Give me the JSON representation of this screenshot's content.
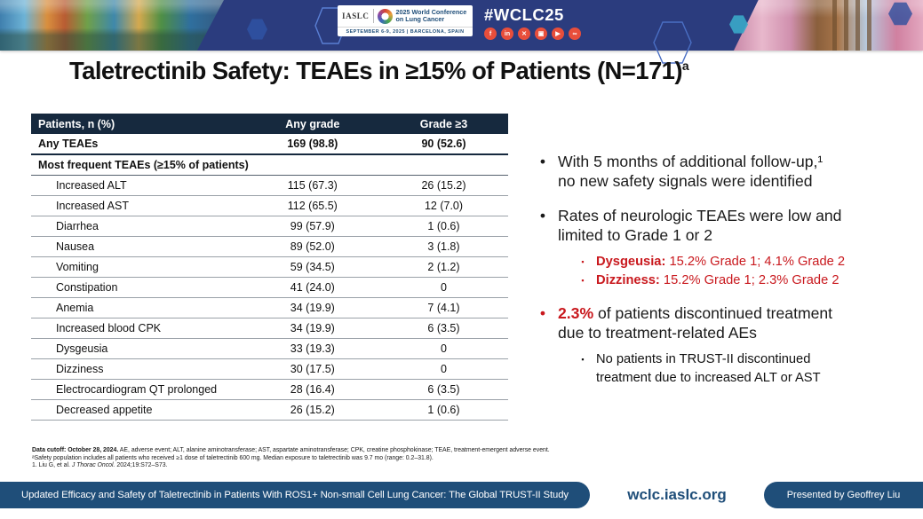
{
  "colors": {
    "banner_blue": "#2B3C7E",
    "navy": "#1F4E79",
    "table_header": "#16293E",
    "accent_red": "#C9191E",
    "icon_orange": "#E84E3B"
  },
  "glyphs": {
    "dot": "•",
    "square": "▪"
  },
  "header": {
    "hashtag": "#WCLC25",
    "iaslc": "IASLC",
    "conf_line1": "2025 World Conference",
    "conf_line2": "on Lung Cancer",
    "date_location": "SEPTEMBER 6-9, 2025  |  BARCELONA, SPAIN",
    "social": [
      {
        "name": "facebook-icon",
        "glyph": "f"
      },
      {
        "name": "linkedin-icon",
        "glyph": "in"
      },
      {
        "name": "x-icon",
        "glyph": "✕"
      },
      {
        "name": "instagram-icon",
        "glyph": "▣"
      },
      {
        "name": "youtube-icon",
        "glyph": "▶"
      },
      {
        "name": "share-icon",
        "glyph": "∞"
      }
    ]
  },
  "title": "Taletrectinib Safety: TEAEs in ≥15% of Patients (N=171)",
  "title_sup": "a",
  "table": {
    "headers": [
      "Patients, n (%)",
      "Any grade",
      "Grade ≥3"
    ],
    "rows": [
      {
        "label": "Any TEAEs",
        "any_grade": "169 (98.8)",
        "grade3": "90 (52.6)",
        "style": "bold"
      },
      {
        "label": "Most frequent TEAEs (≥15% of patients)",
        "style": "section"
      },
      {
        "label": "Increased ALT",
        "any_grade": "115 (67.3)",
        "grade3": "26 (15.2)",
        "style": "indent"
      },
      {
        "label": "Increased AST",
        "any_grade": "112 (65.5)",
        "grade3": "12 (7.0)",
        "style": "indent"
      },
      {
        "label": "Diarrhea",
        "any_grade": "99 (57.9)",
        "grade3": "1 (0.6)",
        "style": "indent"
      },
      {
        "label": "Nausea",
        "any_grade": "89 (52.0)",
        "grade3": "3 (1.8)",
        "style": "indent"
      },
      {
        "label": "Vomiting",
        "any_grade": "59 (34.5)",
        "grade3": "2 (1.2)",
        "style": "indent"
      },
      {
        "label": "Constipation",
        "any_grade": "41 (24.0)",
        "grade3": "0",
        "style": "indent"
      },
      {
        "label": "Anemia",
        "any_grade": "34 (19.9)",
        "grade3": "7 (4.1)",
        "style": "indent"
      },
      {
        "label": "Increased blood CPK",
        "any_grade": "34 (19.9)",
        "grade3": "6 (3.5)",
        "style": "indent"
      },
      {
        "label": "Dysgeusia",
        "any_grade": "33 (19.3)",
        "grade3": "0",
        "style": "indent"
      },
      {
        "label": "Dizziness",
        "any_grade": "30 (17.5)",
        "grade3": "0",
        "style": "indent"
      },
      {
        "label": "Electrocardiogram QT prolonged",
        "any_grade": "28 (16.4)",
        "grade3": "6 (3.5)",
        "style": "indent"
      },
      {
        "label": "Decreased appetite",
        "any_grade": "26 (15.2)",
        "grade3": "1 (0.6)",
        "style": "indent"
      }
    ]
  },
  "bullets": {
    "b1": "With 5 months of additional follow-up,¹\nno new safety signals were identified",
    "b2": "Rates of neurologic TEAEs were low and\nlimited to Grade 1 or 2",
    "sub1_label": "Dysgeusia:",
    "sub1_text": " 15.2% Grade 1; 4.1% Grade 2",
    "sub2_label": "Dizziness:",
    "sub2_text": " 15.2% Grade 1; 2.3% Grade 2",
    "b3_highlight": "2.3%",
    "b3_text": " of patients discontinued treatment\ndue to treatment-related AEs",
    "b3_sub": "No patients in TRUST-II discontinued\ntreatment due to increased ALT or AST"
  },
  "footnotes": {
    "line1_bold": "Data cutoff: October 28, 2024.",
    "line1_rest": " AE, adverse event; ALT, alanine aminotransferase; AST, aspartate aminotransferase; CPK, creatine phosphokinase; TEAE, treatment-emergent adverse event.",
    "line2": "ᵃSafety population includes all patients who received ≥1 dose of taletrectinib 600 mg. Median exposure to taletrectinib was 9.7 mo (range: 0.2–31.8).",
    "line3_prefix": "1. Liu G, et al. ",
    "line3_italic": "J Thorac Oncol.",
    "line3_rest": " 2024;19:S72–S73."
  },
  "footer": {
    "study_title": "Updated Efficacy and Safety of Taletrectinib in Patients With ROS1+ Non-small Cell Lung Cancer: The Global TRUST-II Study",
    "website": "wclc.iaslc.org",
    "presenter": "Presented by Geoffrey Liu"
  }
}
